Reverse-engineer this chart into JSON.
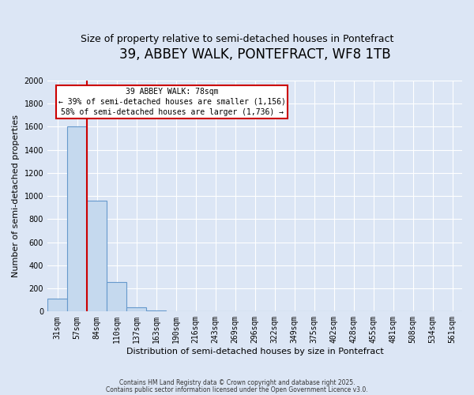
{
  "title": "39, ABBEY WALK, PONTEFRACT, WF8 1TB",
  "subtitle": "Size of property relative to semi-detached houses in Pontefract",
  "xlabel": "Distribution of semi-detached houses by size in Pontefract",
  "ylabel": "Number of semi-detached properties",
  "bar_categories": [
    "31sqm",
    "57sqm",
    "84sqm",
    "110sqm",
    "137sqm",
    "163sqm",
    "190sqm",
    "216sqm",
    "243sqm",
    "269sqm",
    "296sqm",
    "322sqm",
    "349sqm",
    "375sqm",
    "402sqm",
    "428sqm",
    "455sqm",
    "481sqm",
    "508sqm",
    "534sqm",
    "561sqm"
  ],
  "bar_values": [
    110,
    1600,
    960,
    255,
    38,
    10,
    0,
    0,
    0,
    0,
    0,
    0,
    0,
    0,
    0,
    0,
    0,
    0,
    0,
    0,
    0
  ],
  "bar_color": "#c5d9ee",
  "bar_edgecolor": "#6699cc",
  "bar_linewidth": 0.8,
  "vline_color": "#cc0000",
  "annotation_line1": "39 ABBEY WALK: 78sqm",
  "annotation_line2": "← 39% of semi-detached houses are smaller (1,156)",
  "annotation_line3": "58% of semi-detached houses are larger (1,736) →",
  "ylim": [
    0,
    2000
  ],
  "yticks": [
    0,
    200,
    400,
    600,
    800,
    1000,
    1200,
    1400,
    1600,
    1800,
    2000
  ],
  "background_color": "#dce6f5",
  "plot_background": "#dce6f5",
  "title_fontsize": 12,
  "subtitle_fontsize": 9,
  "axis_label_fontsize": 8,
  "tick_fontsize": 7,
  "footnote1": "Contains HM Land Registry data © Crown copyright and database right 2025.",
  "footnote2": "Contains public sector information licensed under the Open Government Licence v3.0."
}
